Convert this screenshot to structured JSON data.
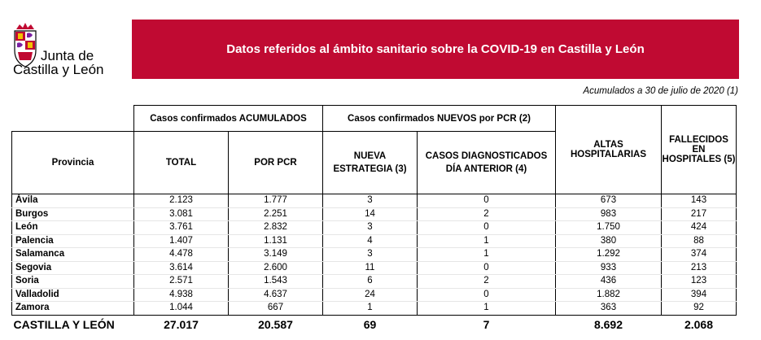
{
  "brand": {
    "line1": "Junta de",
    "line2": "Castilla y León",
    "accent_color": "#c00a32"
  },
  "header": {
    "title": "Datos referidos al ámbito sanitario sobre la COVID-19 en Castilla y León"
  },
  "subtitle": "Acumulados a 30 de julio de 2020 (1)",
  "table": {
    "group_headers": {
      "acumulados": "Casos confirmados ACUMULADOS",
      "nuevos": "Casos confirmados NUEVOS por PCR (2)"
    },
    "columns": {
      "provincia": "Provincia",
      "total": "TOTAL",
      "por_pcr": "POR PCR",
      "nueva_estrategia": "NUEVA ESTRATEGIA (3)",
      "dia_anterior": "CASOS DIAGNOSTICADOS DÍA ANTERIOR (4)",
      "altas": "ALTAS HOSPITALARIAS",
      "fallecidos": "FALLECIDOS EN HOSPITALES (5)"
    },
    "rows": [
      {
        "provincia": "Ávila",
        "total": "2.123",
        "por_pcr": "1.777",
        "nueva_estrategia": "3",
        "dia_anterior": "0",
        "altas": "673",
        "fallecidos": "143"
      },
      {
        "provincia": "Burgos",
        "total": "3.081",
        "por_pcr": "2.251",
        "nueva_estrategia": "14",
        "dia_anterior": "2",
        "altas": "983",
        "fallecidos": "217"
      },
      {
        "provincia": "León",
        "total": "3.761",
        "por_pcr": "2.832",
        "nueva_estrategia": "3",
        "dia_anterior": "0",
        "altas": "1.750",
        "fallecidos": "424"
      },
      {
        "provincia": "Palencia",
        "total": "1.407",
        "por_pcr": "1.131",
        "nueva_estrategia": "4",
        "dia_anterior": "1",
        "altas": "380",
        "fallecidos": "88"
      },
      {
        "provincia": "Salamanca",
        "total": "4.478",
        "por_pcr": "3.149",
        "nueva_estrategia": "3",
        "dia_anterior": "1",
        "altas": "1.292",
        "fallecidos": "374"
      },
      {
        "provincia": "Segovia",
        "total": "3.614",
        "por_pcr": "2.600",
        "nueva_estrategia": "11",
        "dia_anterior": "0",
        "altas": "933",
        "fallecidos": "213"
      },
      {
        "provincia": "Soria",
        "total": "2.571",
        "por_pcr": "1.543",
        "nueva_estrategia": "6",
        "dia_anterior": "2",
        "altas": "436",
        "fallecidos": "123"
      },
      {
        "provincia": "Valladolid",
        "total": "4.938",
        "por_pcr": "4.637",
        "nueva_estrategia": "24",
        "dia_anterior": "0",
        "altas": "1.882",
        "fallecidos": "394"
      },
      {
        "provincia": "Zamora",
        "total": "1.044",
        "por_pcr": "667",
        "nueva_estrategia": "1",
        "dia_anterior": "1",
        "altas": "363",
        "fallecidos": "92"
      }
    ],
    "totals": {
      "provincia": "CASTILLA Y LEÓN",
      "total": "27.017",
      "por_pcr": "20.587",
      "nueva_estrategia": "69",
      "dia_anterior": "7",
      "altas": "8.692",
      "fallecidos": "2.068"
    }
  }
}
